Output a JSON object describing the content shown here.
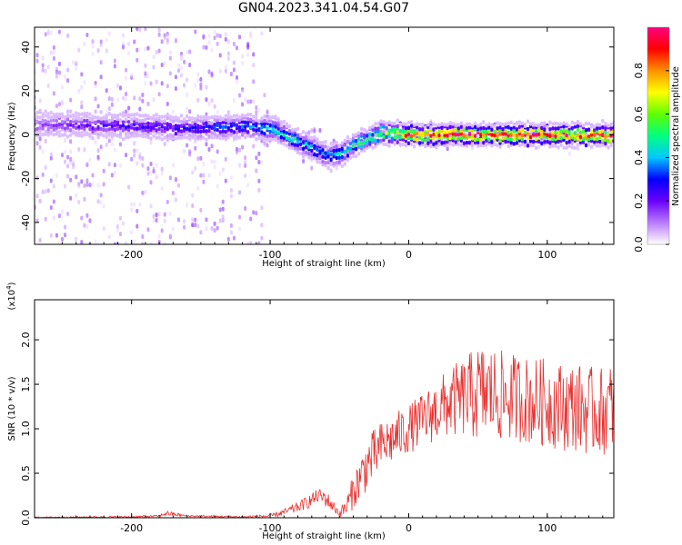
{
  "page": {
    "title": "GN04.2023.341.04.54.G07"
  },
  "colors": {
    "snr_line": "#e8302f",
    "axis": "#000000"
  },
  "chart_data": [
    {
      "type": "heatmap",
      "title": "",
      "xlabel": "Height of straight line (km)",
      "ylabel": "Frequency (Hz)",
      "xlim": [
        -270,
        148
      ],
      "ylim": [
        -50,
        49
      ],
      "x_ticks": [
        -200,
        -100,
        0,
        100
      ],
      "y_ticks": [
        -40,
        -20,
        0,
        20,
        40
      ],
      "colorbar": {
        "label": "Normalized spectral amplitude",
        "range": [
          0,
          1
        ],
        "ticks": [
          0.0,
          0.2,
          0.4,
          0.6,
          0.8
        ],
        "tick_labels": [
          "0.0",
          "0.2",
          "0.4",
          "0.6",
          "0.8"
        ],
        "colormap": [
          "#ffffff",
          "#b87bff",
          "#6a00ff",
          "#0000ff",
          "#00c8ff",
          "#00ff80",
          "#60ff00",
          "#ffff00",
          "#ff9000",
          "#ff0000",
          "#ff0080"
        ]
      },
      "ridge": {
        "x": [
          -270,
          -200,
          -150,
          -120,
          -100,
          -90,
          -80,
          -70,
          -60,
          -50,
          -40,
          -30,
          -20,
          -10,
          0,
          20,
          50,
          100,
          148
        ],
        "frequency": [
          5,
          4,
          3,
          4,
          3,
          0,
          -3,
          -6,
          -9,
          -9,
          -5,
          -2,
          1,
          1,
          0,
          0,
          0,
          0,
          0
        ],
        "peak_amplitude": [
          0.15,
          0.25,
          0.3,
          0.35,
          0.45,
          0.5,
          0.45,
          0.4,
          0.4,
          0.45,
          0.5,
          0.6,
          0.6,
          0.7,
          0.95,
          0.95,
          0.95,
          0.95,
          0.95
        ],
        "noise_spread_hz": [
          50,
          50,
          50,
          50,
          8,
          6,
          6,
          10,
          8,
          6,
          4,
          3,
          3,
          3,
          4,
          5,
          5,
          5,
          5
        ]
      }
    },
    {
      "type": "line",
      "title": "",
      "xlabel": "Height of straight line (km)",
      "ylabel": "SNR (10 * v/v)",
      "y_multiplier": "(x10",
      "y_multiplier_exp": "4",
      "y_multiplier_close": ")",
      "xlim": [
        -270,
        148
      ],
      "ylim": [
        0,
        2.45
      ],
      "x_ticks": [
        -200,
        -100,
        0,
        100
      ],
      "y_ticks": [
        0.0,
        0.5,
        1.0,
        1.5,
        2.0
      ],
      "y_tick_labels": [
        "0.0",
        "0.5",
        "1.0",
        "1.5",
        "2.0"
      ],
      "series": [
        {
          "x": [
            -270,
            -200,
            -180,
            -175,
            -160,
            -120,
            -100,
            -90,
            -80,
            -70,
            -65,
            -60,
            -50,
            -45,
            -40,
            -35,
            -30,
            -25,
            -20,
            -10,
            0,
            10,
            20,
            30,
            40,
            50,
            60,
            70,
            80,
            90,
            100,
            110,
            120,
            130,
            140,
            148
          ],
          "mean": [
            0.005,
            0.01,
            0.02,
            0.05,
            0.02,
            0.01,
            0.02,
            0.06,
            0.12,
            0.2,
            0.25,
            0.22,
            0.05,
            0.12,
            0.3,
            0.45,
            0.6,
            0.7,
            0.8,
            0.9,
            1.0,
            1.1,
            1.2,
            1.3,
            1.35,
            1.4,
            1.4,
            1.35,
            1.35,
            1.3,
            1.3,
            1.25,
            1.25,
            1.2,
            1.2,
            1.25
          ],
          "spread": [
            0.005,
            0.01,
            0.01,
            0.03,
            0.01,
            0.01,
            0.02,
            0.04,
            0.06,
            0.08,
            0.08,
            0.1,
            0.04,
            0.12,
            0.2,
            0.25,
            0.3,
            0.3,
            0.28,
            0.28,
            0.28,
            0.3,
            0.35,
            0.4,
            0.45,
            0.55,
            0.55,
            0.5,
            0.5,
            0.5,
            0.5,
            0.5,
            0.5,
            0.5,
            0.5,
            0.5
          ]
        }
      ]
    }
  ]
}
